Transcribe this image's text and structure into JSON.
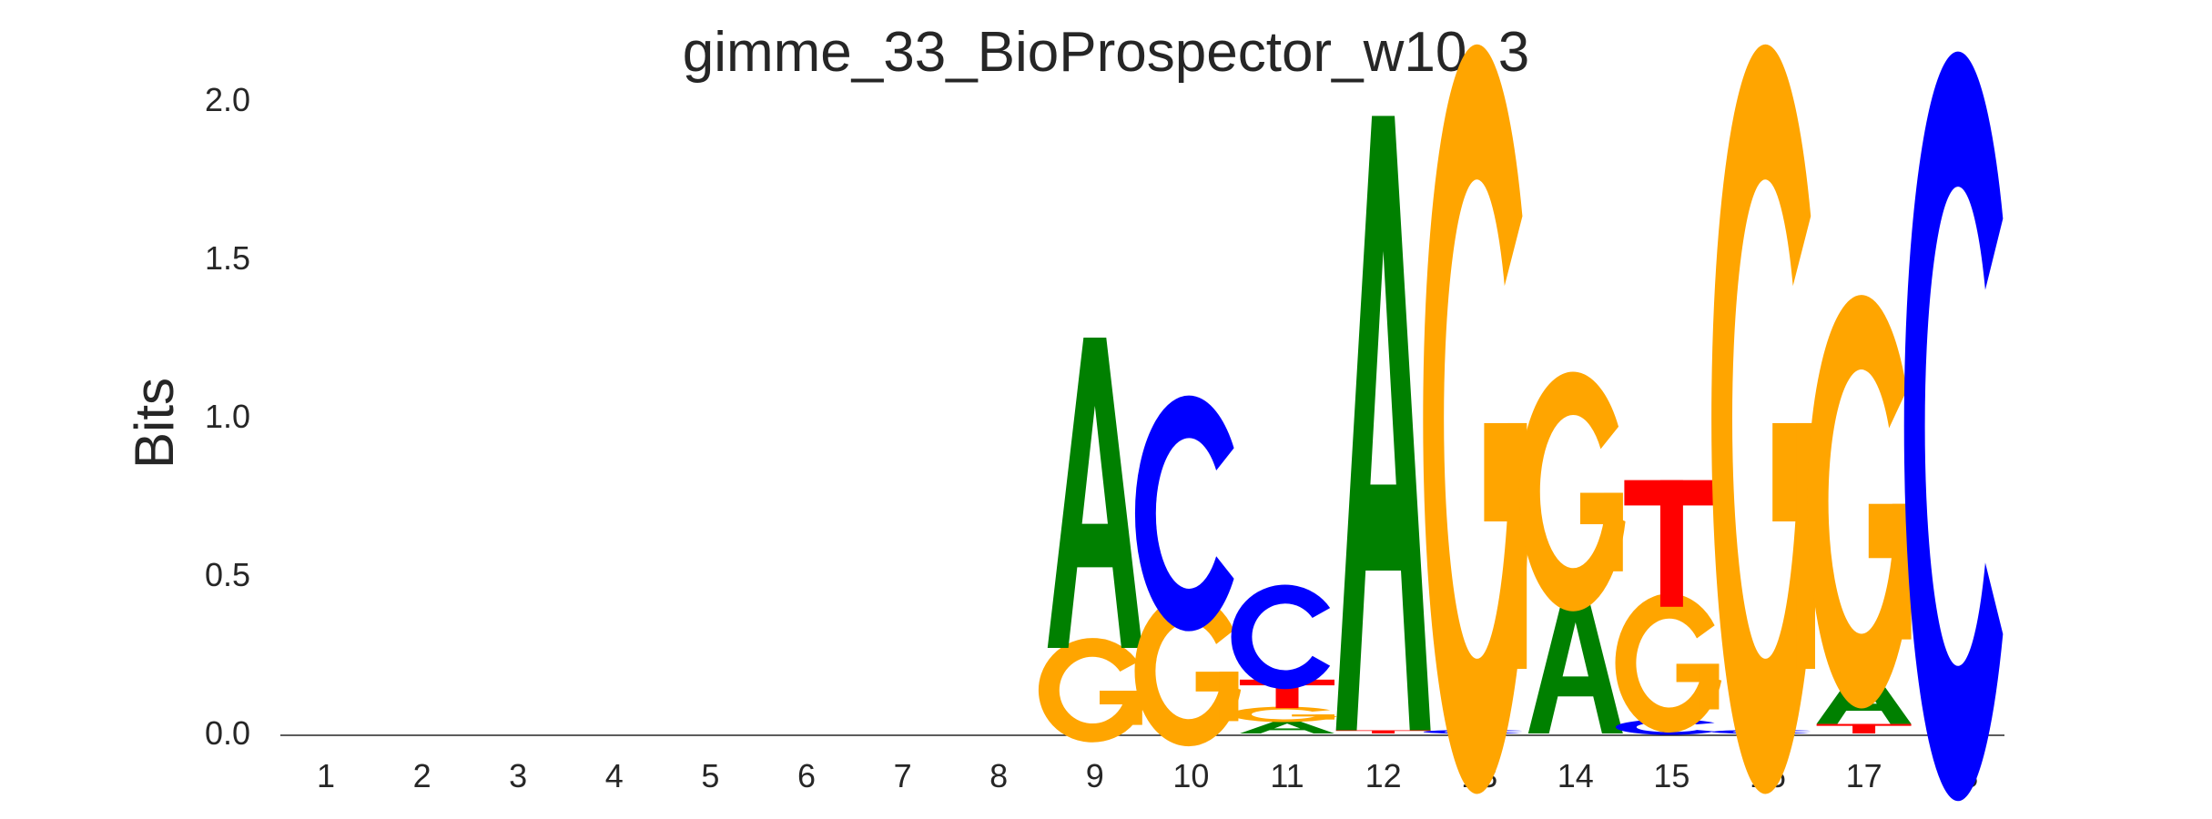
{
  "chart_data": {
    "type": "sequence-logo",
    "title": "gimme_33_BioProspector_w10_3",
    "xlabel": "",
    "ylabel": "Bits",
    "ylim": [
      0,
      2.0
    ],
    "yticks": [
      "0.0",
      "0.5",
      "1.0",
      "1.5",
      "2.0"
    ],
    "yticks_values": [
      0,
      0.5,
      1.0,
      1.5,
      2.0
    ],
    "positions": [
      "1",
      "2",
      "3",
      "4",
      "5",
      "6",
      "7",
      "8",
      "9",
      "10",
      "11",
      "12",
      "13",
      "14",
      "15",
      "16",
      "17",
      "18"
    ],
    "colors": {
      "A": "#008000",
      "C": "#0000ff",
      "G": "#ffa500",
      "T": "#ff0000"
    },
    "stacks": [
      [],
      [],
      [],
      [],
      [],
      [],
      [],
      [],
      [
        [
          "G",
          0.27
        ],
        [
          "A",
          0.98
        ]
      ],
      [
        [
          "G",
          0.39
        ],
        [
          "C",
          0.61
        ]
      ],
      [
        [
          "A",
          0.04
        ],
        [
          "G",
          0.04
        ],
        [
          "T",
          0.09
        ],
        [
          "C",
          0.27
        ]
      ],
      [
        [
          "T",
          0.01
        ],
        [
          "A",
          1.94
        ]
      ],
      [
        [
          "C",
          0.01
        ],
        [
          "G",
          1.94
        ]
      ],
      [
        [
          "A",
          0.45
        ],
        [
          "G",
          0.62
        ]
      ],
      [
        [
          "C",
          0.04
        ],
        [
          "G",
          0.36
        ],
        [
          "T",
          0.4
        ]
      ],
      [
        [
          "C",
          0.01
        ],
        [
          "G",
          1.94
        ]
      ],
      [
        [
          "T",
          0.03
        ],
        [
          "A",
          0.16
        ],
        [
          "G",
          1.07
        ]
      ],
      [
        [
          "C",
          1.94
        ]
      ]
    ]
  }
}
